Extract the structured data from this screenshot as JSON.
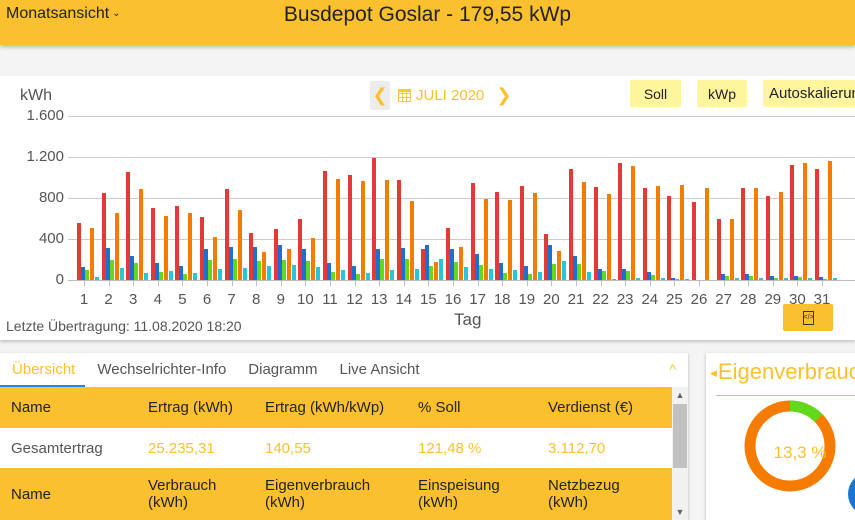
{
  "header": {
    "view_select": "Monatsansicht",
    "title": "Busdepot Goslar - 179,55 kWp"
  },
  "chart_controls": {
    "month_label": "JULI 2020",
    "prev_icon": "chevron-left-icon",
    "next_icon": "chevron-right-icon",
    "calendar_icon": "calendar-icon",
    "soll_label": "Soll",
    "kwp_label": "kWp",
    "autoscale_label": "Autoskalierung"
  },
  "footer": {
    "last_transfer": "Letzte Übertragung: 11.08.2020 18:20",
    "export_icon": "code-file-icon"
  },
  "chart_data": {
    "type": "bar",
    "title": "",
    "xlabel": "Tag",
    "ylabel": "kWh",
    "ylim": [
      0,
      1600
    ],
    "yticks": [
      "0",
      "400",
      "800",
      "1.200",
      "1.600"
    ],
    "grid": true,
    "categories": [
      "1",
      "2",
      "3",
      "4",
      "5",
      "6",
      "7",
      "8",
      "9",
      "10",
      "11",
      "12",
      "13",
      "14",
      "15",
      "16",
      "17",
      "18",
      "19",
      "20",
      "21",
      "22",
      "23",
      "24",
      "25",
      "26",
      "27",
      "28",
      "29",
      "30",
      "31"
    ],
    "series": [
      {
        "name": "Ertrag",
        "color": "#e53935",
        "values": [
          556,
          849,
          1054,
          702,
          722,
          615,
          888,
          459,
          498,
          595,
          1063,
          1024,
          1190,
          976,
          302,
          507,
          946,
          859,
          917,
          449,
          1083,
          907,
          1141,
          898,
          820,
          761,
          595,
          898,
          820,
          1122,
          1083
        ]
      },
      {
        "name": "Verbrauch",
        "color": "#1e6fd0",
        "values": [
          127,
          312,
          234,
          166,
          137,
          302,
          322,
          322,
          341,
          302,
          166,
          137,
          302,
          312,
          341,
          302,
          254,
          166,
          137,
          341,
          234,
          107,
          107,
          78,
          20,
          0,
          59,
          59,
          39,
          39,
          29
        ]
      },
      {
        "name": "Eigenverbrauch",
        "color": "#62d91a",
        "values": [
          98,
          195,
          166,
          78,
          59,
          195,
          205,
          185,
          195,
          185,
          78,
          59,
          205,
          205,
          137,
          176,
          146,
          68,
          59,
          156,
          156,
          88,
          88,
          49,
          10,
          0,
          39,
          39,
          20,
          29,
          10
        ]
      },
      {
        "name": "Soll",
        "color": "#f57c00",
        "values": [
          507,
          654,
          888,
          624,
          654,
          420,
          683,
          273,
          302,
          410,
          985,
          966,
          976,
          771,
          176,
          322,
          790,
          780,
          849,
          283,
          956,
          839,
          1112,
          917,
          927,
          898,
          595,
          898,
          859,
          1141,
          1161
        ]
      },
      {
        "name": "Netzbezug",
        "color": "#26c6da",
        "values": [
          30,
          117,
          68,
          88,
          68,
          107,
          117,
          137,
          146,
          127,
          98,
          68,
          98,
          107,
          205,
          127,
          107,
          98,
          78,
          185,
          78,
          10,
          20,
          20,
          10,
          0,
          20,
          20,
          20,
          20,
          20
        ]
      }
    ]
  },
  "tabs": [
    {
      "label": "Übersicht",
      "active": true
    },
    {
      "label": "Wechselrichter-Info",
      "active": false
    },
    {
      "label": "Diagramm",
      "active": false
    },
    {
      "label": "Live Ansicht",
      "active": false
    }
  ],
  "table": {
    "header1": [
      "Name",
      "Ertrag (kWh)",
      "Ertrag (kWh/kWp)",
      "% Soll",
      "Verdienst (€)"
    ],
    "row1": [
      "Gesamtertrag",
      "25.235,31",
      "140,55",
      "121,48 %",
      "3.112,70"
    ],
    "header2": [
      "Name",
      "Verbrauch (kWh)",
      "Eigenverbrauch (kWh)",
      "Einspeisung (kWh)",
      "Netzbezug (kWh)"
    ]
  },
  "donut": {
    "title": "Eigenverbrauch",
    "value_label": "13,3 %",
    "percent": 13.3,
    "colors": {
      "main": "#f57c00",
      "part": "#62d91a"
    }
  },
  "colors": {
    "accent": "#fbc02d",
    "chip_bg": "#fff59d",
    "tab_underline": "#1e88e5"
  }
}
